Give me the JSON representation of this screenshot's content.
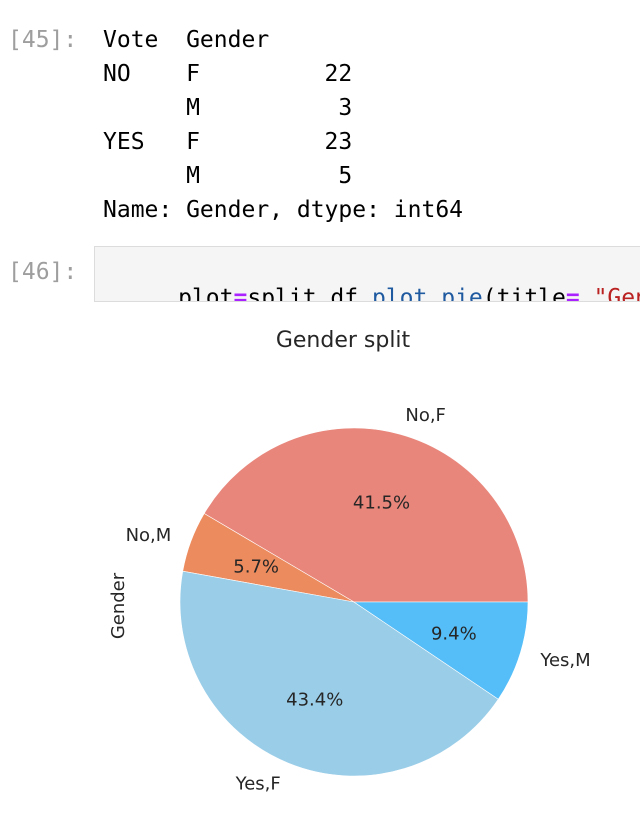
{
  "cells": {
    "out_45": {
      "prompt": "[45]:",
      "lines": [
        "Vote  Gender",
        "NO    F         22",
        "      M          3",
        "YES   F         23",
        "      M          5",
        "Name: Gender, dtype: int64"
      ]
    },
    "in_46": {
      "prompt": "[46]:",
      "code_tokens": [
        {
          "text": "plot",
          "kind": "plain"
        },
        {
          "text": "=",
          "kind": "op"
        },
        {
          "text": "split_df",
          "kind": "plain"
        },
        {
          "text": ".",
          "kind": "plain"
        },
        {
          "text": "plot",
          "kind": "attr"
        },
        {
          "text": ".",
          "kind": "plain"
        },
        {
          "text": "pie",
          "kind": "attr"
        },
        {
          "text": "(title",
          "kind": "plain"
        },
        {
          "text": "=",
          "kind": "op"
        },
        {
          "text": " \"Gend",
          "kind": "str"
        }
      ]
    }
  },
  "colors": {
    "slice_no_f": "#e8867b",
    "slice_no_m": "#ec8b5e",
    "slice_yes_f": "#9acde8",
    "slice_yes_m": "#55bdf8",
    "prompt": "#9e9e9e",
    "code_bg": "#f5f5f5"
  },
  "chart_data": {
    "type": "pie",
    "title": "Gender split",
    "ylabel": "Gender",
    "slices": [
      {
        "label": "No,F",
        "value": 22,
        "pct_label": "41.5%",
        "color": "#e8867b"
      },
      {
        "label": "No,M",
        "value": 3,
        "pct_label": "5.7%",
        "color": "#ec8b5e"
      },
      {
        "label": "Yes,F",
        "value": 23,
        "pct_label": "43.4%",
        "color": "#9acde8"
      },
      {
        "label": "Yes,M",
        "value": 5,
        "pct_label": "9.4%",
        "color": "#55bdf8"
      }
    ]
  }
}
